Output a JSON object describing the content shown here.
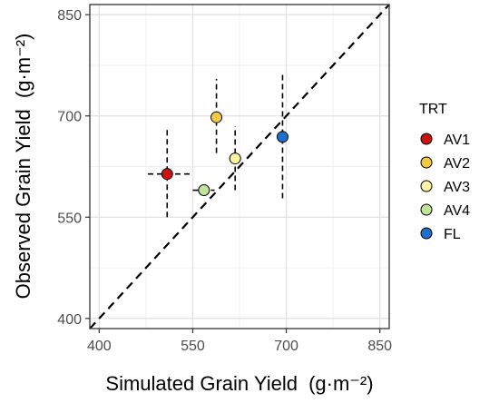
{
  "chart_data": {
    "type": "scatter",
    "xlabel": "Simulated Grain Yield",
    "xlabel_unit": "(g·m⁻²)",
    "ylabel": "Observed Grain Yield",
    "ylabel_unit": "(g·m⁻²)",
    "xlim": [
      385,
      865
    ],
    "ylim": [
      385,
      865
    ],
    "x_ticks": [
      400,
      550,
      700,
      850
    ],
    "y_ticks": [
      400,
      550,
      700,
      850
    ],
    "grid": true,
    "reference_line": {
      "type": "1:1",
      "style": "dashed"
    },
    "legend": {
      "title": "TRT",
      "position": "right",
      "entries": [
        "AV1",
        "AV2",
        "AV3",
        "AV4",
        "FL"
      ]
    },
    "series": [
      {
        "name": "AV1",
        "color": "#cc1111",
        "x": 509,
        "y": 614,
        "x_err": [
          478,
          550
        ],
        "y_err": [
          550,
          680
        ]
      },
      {
        "name": "AV2",
        "color": "#f5c842",
        "x": 588,
        "y": 698,
        "x_err": null,
        "y_err": [
          645,
          755
        ]
      },
      {
        "name": "AV3",
        "color": "#fdf4a3",
        "x": 618,
        "y": 637,
        "x_err": null,
        "y_err": [
          590,
          685
        ]
      },
      {
        "name": "AV4",
        "color": "#bfe49a",
        "x": 568,
        "y": 590,
        "x_err": [
          550,
          585
        ],
        "y_err": null
      },
      {
        "name": "FL",
        "color": "#1f6fcc",
        "x": 694,
        "y": 669,
        "x_err": null,
        "y_err": [
          578,
          762
        ]
      }
    ]
  }
}
